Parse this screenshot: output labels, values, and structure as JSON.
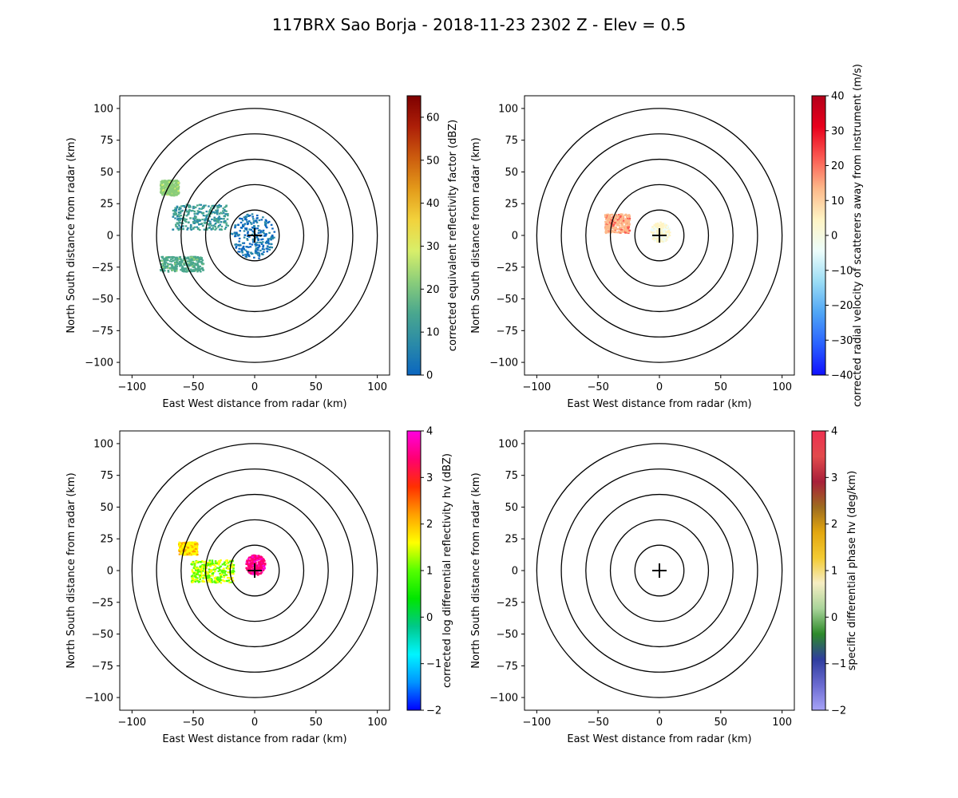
{
  "figure": {
    "title": "117BRX Sao Borja - 2018-11-23 2302 Z -  Elev = 0.5"
  },
  "colors": {
    "axis": "#000000",
    "ring": "#000000",
    "background": "#ffffff"
  },
  "chart_data": [
    {
      "type": "heatmap",
      "panel": "top-left",
      "field": "reflectivity",
      "xlabel": "East West distance from radar (km)",
      "ylabel": "North South distance from radar (km)",
      "xlim": [
        -110,
        110
      ],
      "ylim": [
        -110,
        110
      ],
      "xticks": [
        -100,
        -50,
        0,
        50,
        100
      ],
      "yticks": [
        -100,
        -75,
        -50,
        -25,
        0,
        25,
        50,
        75,
        100
      ],
      "range_rings_km": [
        20,
        40,
        60,
        80,
        100
      ],
      "radar_location": [
        0,
        0
      ],
      "colorbar": {
        "label": "corrected equivalent reflectivity factor (dBZ)",
        "range": [
          0,
          65
        ],
        "ticks": [
          0,
          10,
          20,
          30,
          40,
          50,
          60
        ],
        "colors": [
          "#0b66c0",
          "#2a8aa8",
          "#4aa78e",
          "#8acd7a",
          "#d8ef6a",
          "#f2d23c",
          "#e39a1a",
          "#cc5c0e",
          "#ad1f08",
          "#7e0000"
        ]
      },
      "echo_regions": [
        {
          "name": "near-radar echo",
          "center": [
            -2,
            0
          ],
          "radius_km": 18,
          "value": 3
        },
        {
          "name": "west band",
          "center": [
            -45,
            15
          ],
          "extent_km": [
            45,
            20
          ],
          "value": 12
        },
        {
          "name": "southwest band",
          "center": [
            -60,
            -22
          ],
          "extent_km": [
            35,
            12
          ],
          "value": 15
        },
        {
          "name": "northwest cells",
          "center": [
            -70,
            38
          ],
          "extent_km": [
            15,
            12
          ],
          "value": 22
        }
      ]
    },
    {
      "type": "heatmap",
      "panel": "top-right",
      "field": "velocity",
      "xlabel": "East West distance from radar (km)",
      "ylabel": "North South distance from radar (km)",
      "xlim": [
        -110,
        110
      ],
      "ylim": [
        -110,
        110
      ],
      "xticks": [
        -100,
        -50,
        0,
        50,
        100
      ],
      "yticks": [
        -100,
        -75,
        -50,
        -25,
        0,
        25,
        50,
        75,
        100
      ],
      "range_rings_km": [
        20,
        40,
        60,
        80,
        100
      ],
      "radar_location": [
        0,
        0
      ],
      "colorbar": {
        "label": "corrected radial velocity of scatterers away from instrument (m/s)",
        "range": [
          -40,
          40
        ],
        "ticks": [
          -40,
          -30,
          -20,
          -10,
          0,
          10,
          20,
          30,
          40
        ],
        "colors": [
          "#1010ff",
          "#2a62ff",
          "#4fa5f5",
          "#9adcf5",
          "#ecfdfb",
          "#fff4c4",
          "#fdb98a",
          "#fb5a52",
          "#e8001c",
          "#b3001a"
        ]
      },
      "echo_regions": [
        {
          "name": "near-radar speckles",
          "center": [
            0,
            3
          ],
          "radius_km": 8,
          "value": 2
        },
        {
          "name": "west speckles",
          "center": [
            -35,
            10
          ],
          "extent_km": [
            20,
            15
          ],
          "value": 15
        }
      ]
    },
    {
      "type": "heatmap",
      "panel": "bottom-left",
      "field": "differential_reflectivity",
      "xlabel": "East West distance from radar (km)",
      "ylabel": "North South distance from radar (km)",
      "xlim": [
        -110,
        110
      ],
      "ylim": [
        -110,
        110
      ],
      "xticks": [
        -100,
        -50,
        0,
        50,
        100
      ],
      "yticks": [
        -100,
        -75,
        -50,
        -25,
        0,
        25,
        50,
        75,
        100
      ],
      "range_rings_km": [
        20,
        40,
        60,
        80,
        100
      ],
      "radar_location": [
        0,
        0
      ],
      "colorbar": {
        "label": "corrected log differential reflectivity hv (dBZ)",
        "range": [
          -2,
          4
        ],
        "ticks": [
          -2,
          -1,
          0,
          1,
          2,
          3,
          4
        ],
        "colors": [
          "#0000ff",
          "#0095ff",
          "#00f5ff",
          "#00c88a",
          "#00e600",
          "#55ff00",
          "#ffff00",
          "#ffa000",
          "#ff3000",
          "#ff0070",
          "#ff00e0"
        ]
      },
      "echo_regions": [
        {
          "name": "near-radar cluster",
          "center": [
            0,
            5
          ],
          "radius_km": 8,
          "value": 3.5
        },
        {
          "name": "west band",
          "center": [
            -35,
            0
          ],
          "extent_km": [
            35,
            18
          ],
          "value": 1.3
        },
        {
          "name": "northwest cells",
          "center": [
            -55,
            18
          ],
          "extent_km": [
            15,
            10
          ],
          "value": 1.8
        }
      ]
    },
    {
      "type": "heatmap",
      "panel": "bottom-right",
      "field": "specific_differential_phase",
      "xlabel": "East West distance from radar (km)",
      "ylabel": "North South distance from radar (km)",
      "xlim": [
        -110,
        110
      ],
      "ylim": [
        -110,
        110
      ],
      "xticks": [
        -100,
        -50,
        0,
        50,
        100
      ],
      "yticks": [
        -100,
        -75,
        -50,
        -25,
        0,
        25,
        50,
        75,
        100
      ],
      "range_rings_km": [
        20,
        40,
        60,
        80,
        100
      ],
      "radar_location": [
        0,
        0
      ],
      "colorbar": {
        "label": "specific differential phase hv (deg/km)",
        "range": [
          -2,
          4
        ],
        "ticks": [
          -2,
          -1,
          0,
          1,
          2,
          3,
          4
        ],
        "colors": [
          "#a7a3f7",
          "#6a6ad0",
          "#2f3d9e",
          "#2d8a2a",
          "#a9d49a",
          "#f6edc3",
          "#f3cb33",
          "#e3a70f",
          "#9e6c1f",
          "#a8203a",
          "#e24a4c",
          "#ee3050"
        ]
      },
      "echo_regions": []
    }
  ]
}
